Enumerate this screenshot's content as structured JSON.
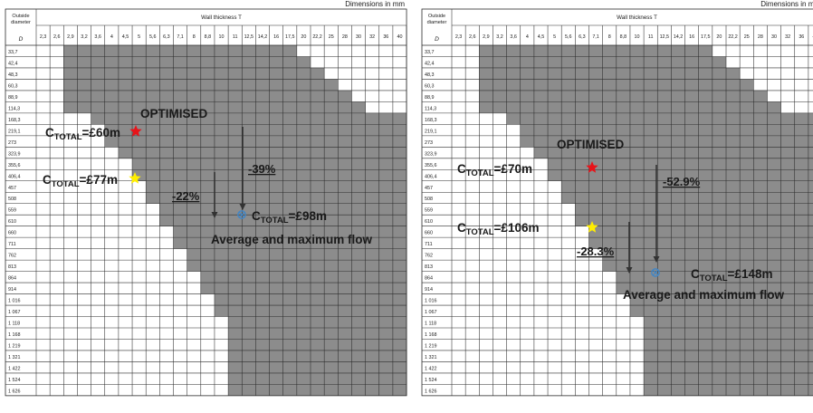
{
  "panels": [
    {
      "id": "left",
      "dimensions_note": "Dimensions in mm",
      "header": {
        "outside_diameter_label": [
          "Outside",
          "diameter"
        ],
        "d_symbol": "D",
        "wall_thickness_label": "Wall thickness T"
      },
      "thicknesses": [
        "2,3",
        "2,6",
        "2,9",
        "3,2",
        "3,6",
        "4",
        "4,5",
        "5",
        "5,6",
        "6,3",
        "7,1",
        "8",
        "8,8",
        "10",
        "11",
        "12,5",
        "14,2",
        "16",
        "17,5",
        "20",
        "22,2",
        "25",
        "28",
        "30",
        "32",
        "36",
        "40"
      ],
      "diameters": [
        "33,7",
        "42,4",
        "48,3",
        "60,3",
        "88,9",
        "114,3",
        "168,3",
        "219,1",
        "273",
        "323,9",
        "355,6",
        "406,4",
        "457",
        "508",
        "559",
        "610",
        "660",
        "711",
        "762",
        "813",
        "864",
        "914",
        "1 016",
        "1 067",
        "1 118",
        "1 168",
        "1 219",
        "1 321",
        "1 422",
        "1 524",
        "1 626"
      ],
      "shaded_ranges": [
        [
          2,
          18
        ],
        [
          2,
          19
        ],
        [
          2,
          20
        ],
        [
          2,
          21
        ],
        [
          2,
          22
        ],
        [
          2,
          23
        ],
        [
          4,
          26
        ],
        [
          5,
          26
        ],
        [
          5,
          26
        ],
        [
          6,
          26
        ],
        [
          7,
          26
        ],
        [
          7,
          26
        ],
        [
          8,
          26
        ],
        [
          8,
          26
        ],
        [
          9,
          26
        ],
        [
          9,
          26
        ],
        [
          10,
          26
        ],
        [
          10,
          26
        ],
        [
          11,
          26
        ],
        [
          11,
          26
        ],
        [
          12,
          26
        ],
        [
          12,
          26
        ],
        [
          13,
          26
        ],
        [
          13,
          26
        ],
        [
          14,
          26
        ],
        [
          14,
          26
        ],
        [
          14,
          26
        ],
        [
          14,
          26
        ],
        [
          14,
          26
        ],
        [
          14,
          26
        ],
        [
          14,
          26
        ]
      ],
      "annotations": {
        "optimised_label": "OPTIMISED",
        "cost_a": {
          "prefix": "C",
          "sub": "TOTAL",
          "value": "=£60m"
        },
        "cost_b": {
          "prefix": "C",
          "sub": "TOTAL",
          "value": "=£77m"
        },
        "cost_c": {
          "prefix": "C",
          "sub": "TOTAL",
          "value": "=£98m"
        },
        "reduction_a": "-39%",
        "reduction_b": "-22%",
        "flow_label": "Average and maximum flow"
      }
    },
    {
      "id": "right",
      "dimensions_note": "Dimensions in mm",
      "header": {
        "outside_diameter_label": [
          "Outside",
          "diameter"
        ],
        "d_symbol": "D",
        "wall_thickness_label": "Wall thickness T"
      },
      "thicknesses": [
        "2,3",
        "2,6",
        "2,9",
        "3,2",
        "3,6",
        "4",
        "4,5",
        "5",
        "5,6",
        "6,3",
        "7,1",
        "8",
        "8,8",
        "10",
        "11",
        "12,5",
        "14,2",
        "16",
        "17,5",
        "20",
        "22,2",
        "25",
        "28",
        "30",
        "32",
        "36",
        "40"
      ],
      "diameters": [
        "33,7",
        "42,4",
        "48,3",
        "60,3",
        "88,9",
        "114,3",
        "168,3",
        "219,1",
        "273",
        "323,9",
        "355,6",
        "406,4",
        "457",
        "508",
        "559",
        "610",
        "660",
        "711",
        "762",
        "813",
        "864",
        "914",
        "1 016",
        "1 067",
        "1 118",
        "1 168",
        "1 219",
        "1 321",
        "1 422",
        "1 524",
        "1 626"
      ],
      "shaded_ranges": [
        [
          2,
          18
        ],
        [
          2,
          19
        ],
        [
          2,
          20
        ],
        [
          2,
          21
        ],
        [
          2,
          22
        ],
        [
          2,
          23
        ],
        [
          4,
          26
        ],
        [
          5,
          26
        ],
        [
          5,
          26
        ],
        [
          6,
          26
        ],
        [
          7,
          26
        ],
        [
          7,
          26
        ],
        [
          8,
          26
        ],
        [
          8,
          26
        ],
        [
          9,
          26
        ],
        [
          9,
          26
        ],
        [
          10,
          26
        ],
        [
          10,
          26
        ],
        [
          11,
          26
        ],
        [
          11,
          26
        ],
        [
          12,
          26
        ],
        [
          12,
          26
        ],
        [
          13,
          26
        ],
        [
          13,
          26
        ],
        [
          14,
          26
        ],
        [
          14,
          26
        ],
        [
          14,
          26
        ],
        [
          14,
          26
        ],
        [
          14,
          26
        ],
        [
          14,
          26
        ],
        [
          14,
          26
        ]
      ],
      "annotations": {
        "optimised_label": "OPTIMISED",
        "cost_a": {
          "prefix": "C",
          "sub": "TOTAL",
          "value": "=£70m"
        },
        "cost_b": {
          "prefix": "C",
          "sub": "TOTAL",
          "value": "=£106m"
        },
        "cost_c": {
          "prefix": "C",
          "sub": "TOTAL",
          "value": "=£148m"
        },
        "reduction_a": "-52.9%",
        "reduction_b": "-28.3%",
        "flow_label": "Average and maximum flow"
      }
    }
  ],
  "colors": {
    "shaded": "#8c8c8c",
    "grid": "#2b2b2b",
    "red_star": "#e8141a",
    "yellow_star": "#ffee00",
    "blue_marker": "#3f86c8",
    "text": "#1a1a1a"
  }
}
